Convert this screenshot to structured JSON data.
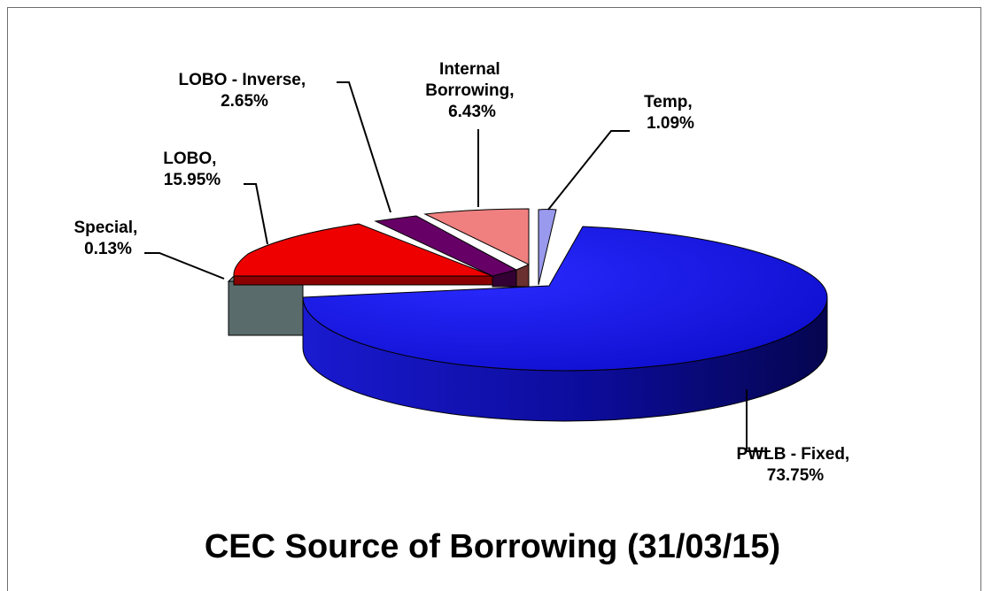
{
  "chart_data": {
    "type": "pie",
    "title": "CEC Source of Borrowing (31/03/15)",
    "slices": [
      {
        "name": "PWLB - Fixed",
        "value": 73.75,
        "label": [
          "PWLB - Fixed,",
          "73.75%"
        ],
        "color": "#1111dd"
      },
      {
        "name": "Special",
        "value": 0.13,
        "label": [
          "Special,",
          "0.13%"
        ],
        "color": "#5a6b6b"
      },
      {
        "name": "LOBO",
        "value": 15.95,
        "label": [
          "LOBO,",
          "15.95%"
        ],
        "color": "#ee0000"
      },
      {
        "name": "LOBO - Inverse",
        "value": 2.65,
        "label": [
          "LOBO - Inverse,",
          "2.65%"
        ],
        "color": "#660066"
      },
      {
        "name": "Internal Borrowing",
        "value": 6.43,
        "label": [
          "Internal",
          "Borrowing,",
          "6.43%"
        ],
        "color": "#f08080"
      },
      {
        "name": "Temp",
        "value": 1.09,
        "label": [
          "Temp,",
          "1.09%"
        ],
        "color": "#9999ee"
      }
    ]
  }
}
